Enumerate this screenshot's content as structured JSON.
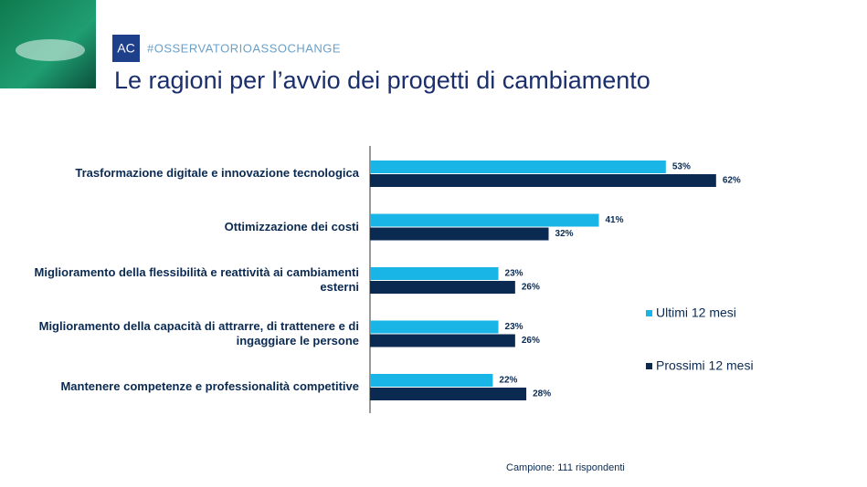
{
  "header": {
    "logo": "AC",
    "hashtag": "#OSSERVATORIOASSOCHANGE"
  },
  "chart_data": {
    "type": "hbar",
    "title": "Le ragioni per l’avvio dei progetti di cambiamento",
    "note": "Campione: 111 rispondenti",
    "categories": [
      "Trasformazione digitale e innovazione tecnologica",
      "Ottimizzazione dei costi",
      "Miglioramento della flessibilità e reattività ai cambiamenti esterni",
      "Miglioramento della capacità di attrarre, di trattenere e di ingaggiare le persone",
      "Mantenere competenze e professionalità competitive"
    ],
    "series": [
      {
        "name": "Ultimi 12 mesi",
        "color": "#19b5e6",
        "values": [
          53,
          41,
          23,
          23,
          22
        ],
        "value_labels": [
          "53%",
          "41%",
          "23%",
          "23%",
          "22%"
        ]
      },
      {
        "name": "Prossimi 12 mesi",
        "color": "#0a2a52",
        "values": [
          62,
          32,
          26,
          26,
          28
        ],
        "value_labels": [
          "62%",
          "32%",
          "26%",
          "26%",
          "28%"
        ]
      }
    ]
  }
}
